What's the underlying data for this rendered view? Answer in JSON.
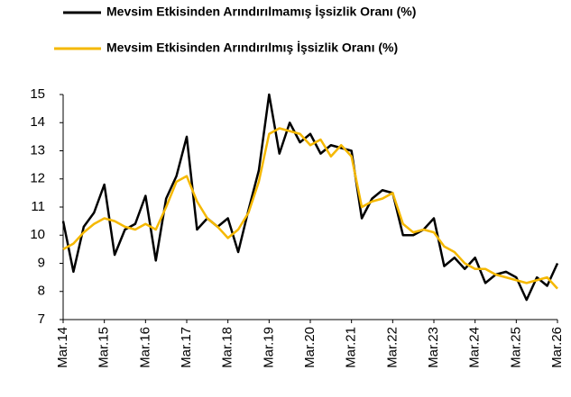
{
  "chart_data": {
    "type": "line",
    "categories": [
      "Mar.14",
      null,
      null,
      null,
      "Mar.15",
      null,
      null,
      null,
      "Mar.16",
      null,
      null,
      null,
      "Mar.17",
      null,
      null,
      null,
      "Mar.18",
      null,
      null,
      null,
      "Mar.19",
      null,
      null,
      null,
      "Mar.20",
      null,
      null,
      null,
      "Mar.21",
      null,
      null,
      null,
      "Mar.22",
      null,
      null,
      null,
      "Mar.23",
      null,
      null,
      null,
      "Mar.24",
      null,
      null,
      null,
      "Mar.25",
      null,
      null,
      null,
      "Mar.26"
    ],
    "series": [
      {
        "name": "Mevsim Etkisinden Arındırılmamış İşsizlik Oranı (%)",
        "color": "#000000",
        "values": [
          10.5,
          8.7,
          10.3,
          10.8,
          11.8,
          9.3,
          10.2,
          10.4,
          11.4,
          9.1,
          11.3,
          12.1,
          13.5,
          10.2,
          10.6,
          10.3,
          10.6,
          9.4,
          10.9,
          12.3,
          15.0,
          12.9,
          14.0,
          13.3,
          13.6,
          12.9,
          13.2,
          13.1,
          13.0,
          10.6,
          11.3,
          11.6,
          11.5,
          10.0,
          10.0,
          10.2,
          10.6,
          8.9,
          9.2,
          8.8,
          9.2,
          8.3,
          8.6,
          8.7,
          8.5,
          7.7,
          8.5,
          8.2,
          9.0
        ]
      },
      {
        "name": "Mevsim Etkisinden Arındırılmış İşsizlik Oranı (%)",
        "color": "#f5b800",
        "values": [
          9.5,
          9.7,
          10.1,
          10.4,
          10.6,
          10.5,
          10.3,
          10.2,
          10.4,
          10.2,
          11.0,
          11.9,
          12.1,
          11.2,
          10.6,
          10.3,
          9.9,
          10.2,
          10.8,
          11.9,
          13.6,
          13.8,
          13.7,
          13.6,
          13.2,
          13.4,
          12.8,
          13.2,
          12.8,
          11.0,
          11.2,
          11.3,
          11.5,
          10.4,
          10.1,
          10.2,
          10.1,
          9.6,
          9.4,
          9.0,
          8.8,
          8.8,
          8.6,
          8.5,
          8.4,
          8.3,
          8.4,
          8.5,
          8.1
        ]
      }
    ],
    "ylim": [
      7,
      15
    ],
    "yticks": [
      7,
      8,
      9,
      10,
      11,
      12,
      13,
      14,
      15
    ]
  }
}
